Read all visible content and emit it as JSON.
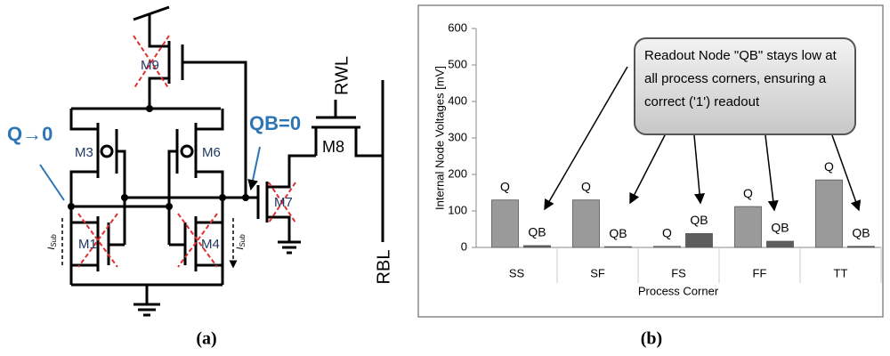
{
  "diagram": {
    "q_label": "Q→0",
    "qb_label": "QB=0",
    "transistors": {
      "m1": "M1",
      "m3": "M3",
      "m4": "M4",
      "m6": "M6",
      "m7": "M7",
      "m8": "M8",
      "m9": "M9"
    },
    "rwl": "RWL",
    "rbl": "RBL",
    "isub": {
      "main": "I",
      "sub": "Sub"
    },
    "caption": "(a)"
  },
  "chart_data": {
    "type": "bar",
    "caption": "(b)",
    "ylabel": "Internal Node Voltages [mV]",
    "xlabel": "Process Corner",
    "annotation": "Readout Node \"QB\" stays low at all process corners, ensuring a correct ('1') readout",
    "categories": [
      "SS",
      "SF",
      "FS",
      "FF",
      "TT"
    ],
    "series": [
      {
        "name": "Q",
        "color": "#9a9a9a",
        "values": [
          130,
          130,
          3,
          112,
          185
        ]
      },
      {
        "name": "QB",
        "color": "#5e5e5e",
        "values": [
          5,
          2,
          38,
          17,
          3
        ]
      }
    ],
    "ylim": [
      0,
      600
    ],
    "yticks": [
      0,
      100,
      200,
      300,
      400,
      500,
      600
    ],
    "grid": false
  }
}
